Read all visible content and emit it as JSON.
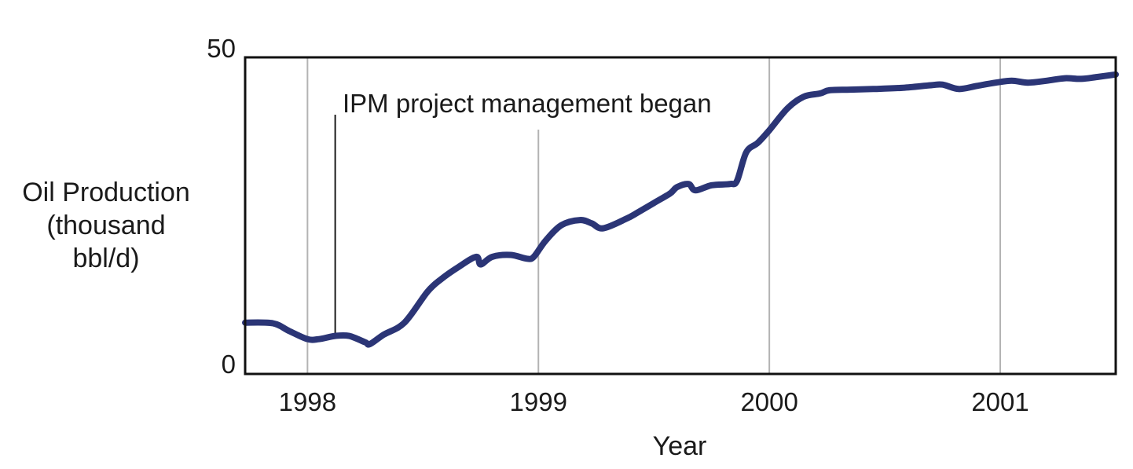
{
  "chart_data": {
    "type": "line",
    "title": "",
    "xlabel": "Year",
    "ylabel_lines": [
      "Oil Production",
      "(thousand",
      "bbl/d)"
    ],
    "ylim": [
      0,
      50
    ],
    "xlim": [
      1997.73,
      2001.5
    ],
    "y_ticks": [
      "0",
      "50"
    ],
    "x_ticks": [
      {
        "value": 1998,
        "label": "1998"
      },
      {
        "value": 1999,
        "label": "1999"
      },
      {
        "value": 2000,
        "label": "2000"
      },
      {
        "value": 2001,
        "label": "2001"
      }
    ],
    "grid": "vertical lines at year ticks",
    "annotation": {
      "text": "IPM project management began",
      "x": 1998.12
    },
    "series": [
      {
        "color": "#2b3576",
        "points": [
          [
            1997.73,
            8.1
          ],
          [
            1997.85,
            8.0
          ],
          [
            1997.92,
            6.8
          ],
          [
            1998.0,
            5.5
          ],
          [
            1998.05,
            5.5
          ],
          [
            1998.12,
            6.0
          ],
          [
            1998.18,
            6.0
          ],
          [
            1998.25,
            5.0
          ],
          [
            1998.27,
            4.7
          ],
          [
            1998.33,
            6.2
          ],
          [
            1998.42,
            8.1
          ],
          [
            1998.52,
            13.0
          ],
          [
            1998.58,
            15.0
          ],
          [
            1998.65,
            16.8
          ],
          [
            1998.73,
            18.5
          ],
          [
            1998.75,
            17.3
          ],
          [
            1998.8,
            18.5
          ],
          [
            1998.88,
            18.8
          ],
          [
            1998.95,
            18.2
          ],
          [
            1998.98,
            18.5
          ],
          [
            1999.03,
            21.0
          ],
          [
            1999.1,
            23.5
          ],
          [
            1999.18,
            24.3
          ],
          [
            1999.23,
            23.8
          ],
          [
            1999.28,
            23.0
          ],
          [
            1999.38,
            24.5
          ],
          [
            1999.43,
            25.5
          ],
          [
            1999.5,
            27.0
          ],
          [
            1999.57,
            28.5
          ],
          [
            1999.6,
            29.5
          ],
          [
            1999.65,
            30.0
          ],
          [
            1999.68,
            29.0
          ],
          [
            1999.75,
            29.8
          ],
          [
            1999.83,
            30.0
          ],
          [
            1999.86,
            30.5
          ],
          [
            1999.9,
            35.0
          ],
          [
            1999.95,
            36.5
          ],
          [
            2000.0,
            38.5
          ],
          [
            2000.08,
            42.0
          ],
          [
            2000.15,
            43.8
          ],
          [
            2000.22,
            44.3
          ],
          [
            2000.26,
            44.8
          ],
          [
            2000.35,
            44.9
          ],
          [
            2000.45,
            45.0
          ],
          [
            2000.58,
            45.2
          ],
          [
            2000.7,
            45.6
          ],
          [
            2000.75,
            45.7
          ],
          [
            2000.82,
            45.0
          ],
          [
            2000.9,
            45.5
          ],
          [
            2000.98,
            46.0
          ],
          [
            2001.05,
            46.3
          ],
          [
            2001.12,
            46.0
          ],
          [
            2001.2,
            46.3
          ],
          [
            2001.28,
            46.7
          ],
          [
            2001.35,
            46.6
          ],
          [
            2001.42,
            46.9
          ],
          [
            2001.5,
            47.3
          ]
        ]
      }
    ]
  }
}
